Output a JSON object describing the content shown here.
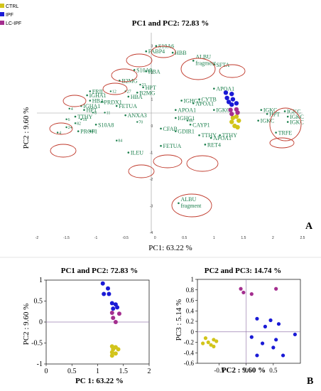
{
  "legend": [
    {
      "label": "CTRL",
      "color": "#d2c41a"
    },
    {
      "label": "IPF",
      "color": "#1a1ad6"
    },
    {
      "label": "LC-IPF",
      "color": "#a42e8f"
    }
  ],
  "panel_labels": {
    "a": "A",
    "b": "B"
  },
  "chart_data": [
    {
      "type": "scatter",
      "title": "PC1 and PC2: 72.83 %",
      "xlabel": "PC1: 63.22 %",
      "ylabel": "PC2 : 9.60 %",
      "xlim": [
        -2,
        2.5
      ],
      "ylim": [
        -4,
        3.5
      ],
      "xticks": [
        "-2",
        "-1.5",
        "-1",
        "-0.5",
        "0",
        "0.5",
        "1",
        "1.5",
        "2",
        "2.5"
      ],
      "yticks": [
        "3",
        "2",
        "1",
        "0",
        "-1",
        "-2",
        "-3",
        "-4"
      ],
      "loadings": [
        {
          "label": "FABP4",
          "x": -0.15,
          "y": 2.8
        },
        {
          "label": "S10A6",
          "x": 0.02,
          "y": 3.0
        },
        {
          "label": "HBB",
          "x": 0.3,
          "y": 2.75
        },
        {
          "label": "ALBU fragment",
          "x": 0.65,
          "y": 2.45
        },
        {
          "label": "SFTA",
          "x": 1.0,
          "y": 2.3
        },
        {
          "label": "S10A9",
          "x": -0.35,
          "y": 2.1
        },
        {
          "label": "HBA",
          "x": -0.15,
          "y": 2.05
        },
        {
          "label": "B2MG",
          "x": -0.6,
          "y": 1.7
        },
        {
          "label": "HPT",
          "x": -0.2,
          "y": 1.45
        },
        {
          "label": "B2MG",
          "x": -0.3,
          "y": 1.25
        },
        {
          "label": "HBA",
          "x": -0.45,
          "y": 1.1
        },
        {
          "label": "FRIL",
          "x": -1.1,
          "y": 1.3
        },
        {
          "label": "IGHA1",
          "x": -1.15,
          "y": 1.15
        },
        {
          "label": "HBA",
          "x": -1.1,
          "y": 0.95
        },
        {
          "label": "PRDX1",
          "x": -0.9,
          "y": 0.9
        },
        {
          "label": "FETUA",
          "x": -0.65,
          "y": 0.75
        },
        {
          "label": "IGHA1",
          "x": -1.25,
          "y": 0.75
        },
        {
          "label": "HPT",
          "x": -1.2,
          "y": 0.6
        },
        {
          "label": "TTHY",
          "x": -1.35,
          "y": 0.35
        },
        {
          "label": "S10A8",
          "x": -1.0,
          "y": 0.05
        },
        {
          "label": "PROF1",
          "x": -1.3,
          "y": -0.2
        },
        {
          "label": "ANXA3",
          "x": -0.5,
          "y": 0.4
        },
        {
          "label": "CFAB",
          "x": 0.1,
          "y": -0.1
        },
        {
          "label": "FETUA",
          "x": 0.1,
          "y": -0.75
        },
        {
          "label": "ILEU",
          "x": -0.45,
          "y": -1.0
        },
        {
          "label": "APOA1",
          "x": 1.0,
          "y": 1.4
        },
        {
          "label": "IGHG1",
          "x": 0.45,
          "y": 0.95
        },
        {
          "label": "CYTB",
          "x": 0.75,
          "y": 1.0
        },
        {
          "label": "APOA1",
          "x": 0.65,
          "y": 0.85
        },
        {
          "label": "APOA1",
          "x": 0.35,
          "y": 0.6
        },
        {
          "label": "IGKC",
          "x": 1.0,
          "y": 0.6
        },
        {
          "label": "IGKC",
          "x": 1.8,
          "y": 0.6
        },
        {
          "label": "HPT",
          "x": 1.9,
          "y": 0.45
        },
        {
          "label": "IGKC",
          "x": 2.2,
          "y": 0.55
        },
        {
          "label": "IGKC",
          "x": 2.25,
          "y": 0.35
        },
        {
          "label": "IGKC",
          "x": 2.25,
          "y": 0.15
        },
        {
          "label": "IGKC",
          "x": 1.75,
          "y": 0.2
        },
        {
          "label": "TRFE",
          "x": 2.05,
          "y": -0.25
        },
        {
          "label": "IGHG1",
          "x": 0.35,
          "y": 0.3
        },
        {
          "label": "CAYP1",
          "x": 0.6,
          "y": 0.05
        },
        {
          "label": "GDIR1",
          "x": 0.35,
          "y": -0.2
        },
        {
          "label": "TTHY",
          "x": 0.75,
          "y": -0.35
        },
        {
          "label": "TTHY",
          "x": 1.1,
          "y": -0.35
        },
        {
          "label": "APOA1",
          "x": 0.95,
          "y": -0.45
        },
        {
          "label": "RET4",
          "x": 0.85,
          "y": -0.7
        },
        {
          "label": "ALBU fragment",
          "x": 0.4,
          "y": -2.9
        }
      ],
      "numbered_points": [
        {
          "label": "23",
          "x": -0.25,
          "y": 1.55
        },
        {
          "label": "12",
          "x": -0.75,
          "y": 1.3
        },
        {
          "label": "27",
          "x": -0.5,
          "y": 1.3
        },
        {
          "label": "4",
          "x": -1.45,
          "y": 0.65
        },
        {
          "label": "8",
          "x": -1.05,
          "y": 0.5
        },
        {
          "label": "11",
          "x": -0.85,
          "y": 0.5
        },
        {
          "label": "6",
          "x": -1.5,
          "y": 0.25
        },
        {
          "label": "18",
          "x": -1.25,
          "y": 0.25
        },
        {
          "label": "82",
          "x": -1.35,
          "y": 0.1
        },
        {
          "label": "24",
          "x": -1.5,
          "y": -0.05
        },
        {
          "label": "41",
          "x": -1.1,
          "y": -0.2
        },
        {
          "label": "4",
          "x": -1.65,
          "y": -0.25
        },
        {
          "label": "70",
          "x": -0.3,
          "y": 0.15
        },
        {
          "label": "66",
          "x": 0.55,
          "y": 0.2
        },
        {
          "label": "84",
          "x": -0.65,
          "y": -0.55
        }
      ],
      "scores": {
        "CTRL": [
          [
            1.32,
            0.3
          ],
          [
            1.38,
            0.35
          ],
          [
            1.3,
            0.15
          ],
          [
            1.42,
            0.2
          ],
          [
            1.35,
            0.0
          ],
          [
            1.4,
            -0.05
          ]
        ],
        "IPF": [
          [
            1.2,
            1.25
          ],
          [
            1.3,
            1.2
          ],
          [
            1.22,
            1.05
          ],
          [
            1.32,
            1.0
          ],
          [
            1.25,
            0.9
          ],
          [
            1.38,
            0.85
          ],
          [
            1.3,
            0.8
          ]
        ],
        "LC-IPF": [
          [
            1.28,
            0.6
          ],
          [
            1.38,
            0.62
          ],
          [
            1.4,
            0.5
          ],
          [
            1.3,
            0.45
          ]
        ]
      }
    },
    {
      "type": "scatter",
      "title": "PC1 and PC2: 72.83 %",
      "xlabel": "PC 1: 63.22 %",
      "ylabel": "PC2 : 9.60 %",
      "xlim": [
        0,
        2
      ],
      "ylim": [
        -1,
        1
      ],
      "xticks": [
        "0",
        "0.5",
        "1",
        "1.5",
        "2"
      ],
      "yticks": [
        "1",
        "0.5",
        "0",
        "-0.5",
        "-1"
      ],
      "series": [
        {
          "name": "CTRL",
          "points": [
            [
              1.28,
              -0.58
            ],
            [
              1.35,
              -0.6
            ],
            [
              1.3,
              -0.65
            ],
            [
              1.4,
              -0.65
            ],
            [
              1.28,
              -0.72
            ],
            [
              1.35,
              -0.75
            ],
            [
              1.28,
              -0.8
            ]
          ]
        },
        {
          "name": "IPF",
          "points": [
            [
              1.1,
              0.92
            ],
            [
              1.2,
              0.8
            ],
            [
              1.12,
              0.67
            ],
            [
              1.22,
              0.67
            ],
            [
              1.28,
              0.45
            ],
            [
              1.35,
              0.42
            ],
            [
              1.3,
              0.32
            ],
            [
              1.38,
              0.35
            ]
          ]
        },
        {
          "name": "LC-IPF",
          "points": [
            [
              1.28,
              0.22
            ],
            [
              1.42,
              0.2
            ],
            [
              1.3,
              0.1
            ],
            [
              1.35,
              0.0
            ]
          ]
        }
      ]
    },
    {
      "type": "scatter",
      "title": "PC2 and PC3: 14.74 %",
      "xlabel": "PC2 : 9.60 %",
      "ylabel": "PC3 : 5.14 %",
      "xlim": [
        -0.9,
        1.0
      ],
      "ylim": [
        -0.6,
        1.0
      ],
      "xticks": [
        "-0.5",
        "0",
        "0.5"
      ],
      "yticks": [
        "1",
        "0.8",
        "0.6",
        "0.4",
        "0.2",
        "0",
        "-0.2",
        "-0.4",
        "-0.6"
      ],
      "series": [
        {
          "name": "CTRL",
          "points": [
            [
              -0.75,
              -0.12
            ],
            [
              -0.6,
              -0.15
            ],
            [
              -0.7,
              -0.2
            ],
            [
              -0.55,
              -0.18
            ],
            [
              -0.65,
              -0.25
            ],
            [
              -0.8,
              -0.22
            ],
            [
              -0.6,
              -0.28
            ]
          ]
        },
        {
          "name": "IPF",
          "points": [
            [
              0.2,
              0.25
            ],
            [
              0.45,
              0.22
            ],
            [
              0.6,
              0.15
            ],
            [
              0.35,
              0.1
            ],
            [
              0.1,
              -0.1
            ],
            [
              0.55,
              -0.15
            ],
            [
              0.9,
              -0.05
            ],
            [
              0.3,
              -0.22
            ],
            [
              0.5,
              -0.3
            ],
            [
              0.2,
              -0.45
            ],
            [
              0.68,
              -0.45
            ]
          ]
        },
        {
          "name": "LC-IPF",
          "points": [
            [
              -0.1,
              0.82
            ],
            [
              -0.05,
              0.75
            ],
            [
              0.1,
              0.72
            ],
            [
              0.55,
              0.82
            ]
          ]
        }
      ]
    }
  ]
}
